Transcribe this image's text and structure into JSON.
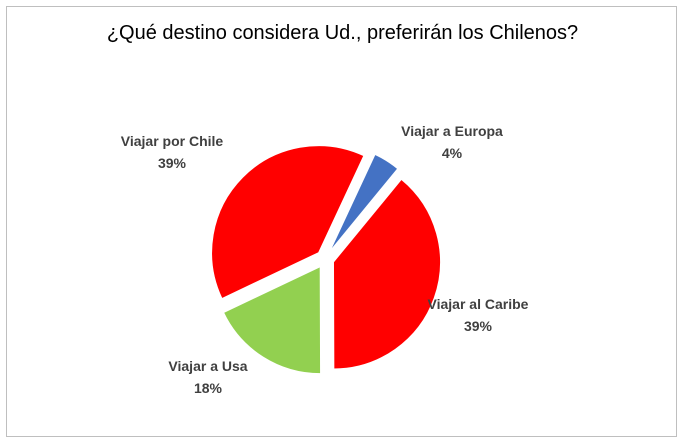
{
  "chart_data": {
    "type": "pie",
    "title": "¿Qué destino considera Ud., preferirán los Chilenos?",
    "slices": [
      {
        "name": "Viajar a Europa",
        "value": 4,
        "label": "4%",
        "color": "#4472c4"
      },
      {
        "name": "Viajar al Caribe",
        "value": 39,
        "label": "39%",
        "color": "#ff0000"
      },
      {
        "name": "Viajar a Usa",
        "value": 18,
        "label": "18%",
        "color": "#92d050"
      },
      {
        "name": "Viajar por Chile",
        "value": 39,
        "label": "39%",
        "color": "#ff0000"
      }
    ]
  }
}
